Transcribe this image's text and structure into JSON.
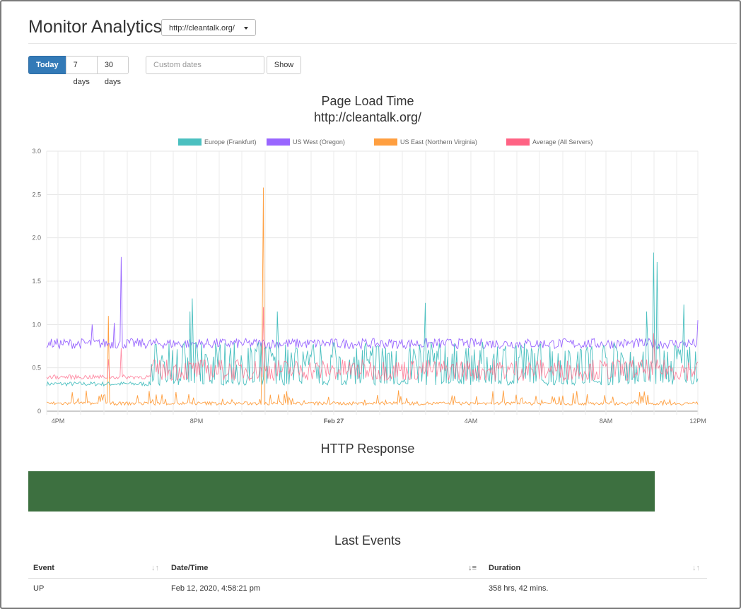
{
  "header": {
    "title": "Monitor Analytics",
    "site_selected": "http://cleantalk.org/"
  },
  "toolbar": {
    "ranges": [
      "Today",
      "7 days",
      "30 days"
    ],
    "active_range": "Today",
    "custom_dates_placeholder": "Custom dates",
    "show_label": "Show"
  },
  "page_load_chart": {
    "title": "Page Load Time",
    "subtitle": "http://cleantalk.org/"
  },
  "http_chart": {
    "title": "HTTP Response",
    "status_color": "#3d7040"
  },
  "events": {
    "title": "Last Events",
    "columns": [
      "Event",
      "Date/Time",
      "Duration"
    ],
    "rows": [
      {
        "event": "UP",
        "datetime": "Feb 12, 2020, 4:58:21 pm",
        "duration": "358 hrs, 42 mins."
      }
    ]
  },
  "chart_data": {
    "type": "line",
    "title": "Page Load Time",
    "subtitle": "http://cleantalk.org/",
    "xlabel": "",
    "ylabel": "",
    "ylim": [
      0,
      3.0
    ],
    "yticks": [
      "0",
      "0.5",
      "1.0",
      "1.5",
      "2.0",
      "2.5",
      "3.0"
    ],
    "xtick_labels": [
      "4PM",
      "8PM",
      "Feb 27",
      "4AM",
      "8AM",
      "12PM"
    ],
    "x_start": "Feb 26, 3:30PM",
    "x_end": "Feb 27, 12PM",
    "legend_position": "top",
    "grid": true,
    "series": [
      {
        "name": "Europe (Frankfurt)",
        "color": "#4bc0c0",
        "baseline_first": 0.3,
        "baseline_later": 0.3,
        "peak_typical": 0.75,
        "spikes": [
          {
            "t": "~7:45PM",
            "v": 1.3
          },
          {
            "t": "~10:30AM",
            "v": 1.83
          },
          {
            "t": "~10:45AM",
            "v": 1.72
          }
        ]
      },
      {
        "name": "US West (Oregon)",
        "color": "#9966ff",
        "typical": 0.78,
        "spikes": [
          {
            "t": "~5:30PM",
            "v": 1.78
          },
          {
            "t": "~5:00PM",
            "v": 1.0
          }
        ]
      },
      {
        "name": "US East (Northern Virginia)",
        "color": "#ff9f40",
        "typical": 0.08,
        "spikes": [
          {
            "t": "~5:20PM",
            "v": 1.1
          },
          {
            "t": "~10:00PM",
            "v": 2.58
          }
        ]
      },
      {
        "name": "Average (All Servers)",
        "color": "#ff6384",
        "typical": 0.4,
        "spikes": [
          {
            "t": "~10:00PM",
            "v": 1.2
          },
          {
            "t": "~5:30PM",
            "v": 0.72
          }
        ]
      }
    ]
  }
}
